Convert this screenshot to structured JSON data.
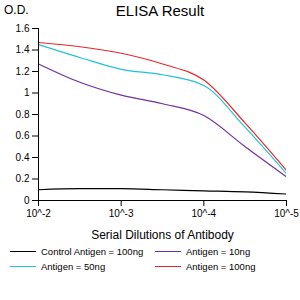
{
  "chart_data": {
    "type": "line",
    "title": "ELISA Result",
    "y_label": "O.D.",
    "x_label": "Serial Dilutions of Antibody",
    "log": "x",
    "grid": false,
    "legend": "bottom",
    "x": [
      0.01,
      0.00316,
      0.001,
      0.000316,
      0.0001,
      3.16e-05,
      1e-05
    ],
    "xlim": [
      0.01,
      1e-05
    ],
    "xticks": [
      {
        "value": 0.01,
        "label": "10^-2"
      },
      {
        "value": 0.001,
        "label": "10^-3"
      },
      {
        "value": 0.0001,
        "label": "10^-4"
      },
      {
        "value": 1e-05,
        "label": "10^-5"
      }
    ],
    "ylim": [
      0,
      1.6
    ],
    "yticks": [
      0,
      0.2,
      0.4,
      0.6,
      0.8,
      1,
      1.2,
      1.4,
      1.6
    ],
    "series": [
      {
        "name": "Control Antigen = 100ng",
        "color": "#000000",
        "values": [
          0.1,
          0.11,
          0.11,
          0.1,
          0.09,
          0.08,
          0.06
        ]
      },
      {
        "name": "Antigen = 10ng",
        "color": "#7030a0",
        "values": [
          1.27,
          1.1,
          0.98,
          0.9,
          0.79,
          0.5,
          0.22
        ]
      },
      {
        "name": "Antigen = 50ng",
        "color": "#21c3d6",
        "values": [
          1.45,
          1.33,
          1.22,
          1.17,
          1.07,
          0.68,
          0.25
        ]
      },
      {
        "name": "Antigen = 100ng",
        "color": "#e8262b",
        "values": [
          1.47,
          1.43,
          1.37,
          1.27,
          1.12,
          0.72,
          0.28
        ]
      }
    ]
  }
}
